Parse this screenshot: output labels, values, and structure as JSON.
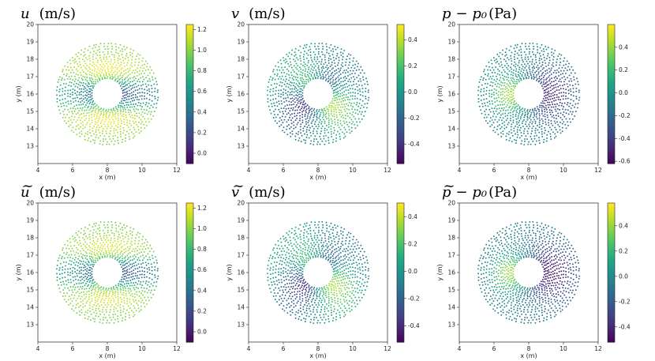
{
  "chart_data": [
    {
      "type": "scatter",
      "field": "u",
      "title_main": "u",
      "title_accent": "",
      "title_units": "(m/s)",
      "xlabel": "x (m)",
      "ylabel": "y (m)",
      "xlim": [
        4,
        12
      ],
      "ylim": [
        12,
        20
      ],
      "xticks": [
        "4",
        "6",
        "8",
        "10",
        "12"
      ],
      "yticks": [
        "13",
        "14",
        "15",
        "16",
        "17",
        "18",
        "19",
        "20"
      ],
      "colorbar": {
        "min": -0.1,
        "max": 1.25,
        "ticks": [
          "0.0",
          "0.2",
          "0.4",
          "0.6",
          "0.8",
          "1.0",
          "1.2"
        ],
        "tick_values": [
          0,
          0.2,
          0.4,
          0.6,
          0.8,
          1.0,
          1.2
        ]
      },
      "domain": {
        "center": [
          8,
          16
        ],
        "radius": 3,
        "obstacle_half_diagonal": 0.75
      }
    },
    {
      "type": "scatter",
      "field": "v",
      "title_main": "v",
      "title_accent": "",
      "title_units": "(m/s)",
      "xlabel": "x (m)",
      "ylabel": "y (m)",
      "xlim": [
        4,
        12
      ],
      "ylim": [
        12,
        20
      ],
      "xticks": [
        "4",
        "6",
        "8",
        "10",
        "12"
      ],
      "yticks": [
        "13",
        "14",
        "15",
        "16",
        "17",
        "18",
        "19",
        "20"
      ],
      "colorbar": {
        "min": -0.55,
        "max": 0.52,
        "ticks": [
          "-0.4",
          "-0.2",
          "0.0",
          "0.2",
          "0.4"
        ],
        "tick_values": [
          -0.4,
          -0.2,
          0.0,
          0.2,
          0.4
        ]
      },
      "domain": {
        "center": [
          8,
          16
        ],
        "radius": 3,
        "obstacle_half_diagonal": 0.75
      }
    },
    {
      "type": "scatter",
      "field": "p",
      "title_main": "p",
      "title_accent": "",
      "title_units": "(Pa)",
      "title_sub": "− p₀",
      "xlabel": "x (m)",
      "ylabel": "y (m)",
      "xlim": [
        4,
        12
      ],
      "ylim": [
        12,
        20
      ],
      "xticks": [
        "4",
        "6",
        "8",
        "10",
        "12"
      ],
      "yticks": [
        "13",
        "14",
        "15",
        "16",
        "17",
        "18",
        "19",
        "20"
      ],
      "colorbar": {
        "min": -0.62,
        "max": 0.6,
        "ticks": [
          "-0.6",
          "-0.4",
          "-0.2",
          "0.0",
          "0.2",
          "0.4"
        ],
        "tick_values": [
          -0.6,
          -0.4,
          -0.2,
          0.0,
          0.2,
          0.4
        ]
      },
      "domain": {
        "center": [
          8,
          16
        ],
        "radius": 3,
        "obstacle_half_diagonal": 0.75
      }
    },
    {
      "type": "scatter",
      "field": "u",
      "title_main": "u",
      "title_accent": "~",
      "title_units": "(m/s)",
      "xlabel": "x (m)",
      "ylabel": "y (m)",
      "xlim": [
        4,
        12
      ],
      "ylim": [
        12,
        20
      ],
      "xticks": [
        "4",
        "6",
        "8",
        "10",
        "12"
      ],
      "yticks": [
        "13",
        "14",
        "15",
        "16",
        "17",
        "18",
        "19",
        "20"
      ],
      "colorbar": {
        "min": -0.1,
        "max": 1.25,
        "ticks": [
          "0.0",
          "0.2",
          "0.4",
          "0.6",
          "0.8",
          "1.0",
          "1.2"
        ],
        "tick_values": [
          0,
          0.2,
          0.4,
          0.6,
          0.8,
          1.0,
          1.2
        ]
      },
      "domain": {
        "center": [
          8,
          16
        ],
        "radius": 3,
        "obstacle_half_diagonal": 0.75
      }
    },
    {
      "type": "scatter",
      "field": "v",
      "title_main": "v",
      "title_accent": "~",
      "title_units": "(m/s)",
      "xlabel": "x (m)",
      "ylabel": "y (m)",
      "xlim": [
        4,
        12
      ],
      "ylim": [
        12,
        20
      ],
      "xticks": [
        "4",
        "6",
        "8",
        "10",
        "12"
      ],
      "yticks": [
        "13",
        "14",
        "15",
        "16",
        "17",
        "18",
        "19",
        "20"
      ],
      "colorbar": {
        "min": -0.52,
        "max": 0.5,
        "ticks": [
          "-0.4",
          "-0.2",
          "0.0",
          "0.2",
          "0.4"
        ],
        "tick_values": [
          -0.4,
          -0.2,
          0.0,
          0.2,
          0.4
        ]
      },
      "domain": {
        "center": [
          8,
          16
        ],
        "radius": 3,
        "obstacle_half_diagonal": 0.75
      }
    },
    {
      "type": "scatter",
      "field": "p",
      "title_main": "p",
      "title_accent": "~",
      "title_units": "(Pa)",
      "title_sub": "− p₀",
      "xlabel": "x (m)",
      "ylabel": "y (m)",
      "xlim": [
        4,
        12
      ],
      "ylim": [
        12,
        20
      ],
      "xticks": [
        "4",
        "6",
        "8",
        "10",
        "12"
      ],
      "yticks": [
        "13",
        "14",
        "15",
        "16",
        "17",
        "18",
        "19",
        "20"
      ],
      "colorbar": {
        "min": -0.52,
        "max": 0.58,
        "ticks": [
          "-0.4",
          "-0.2",
          "0.0",
          "0.2",
          "0.4"
        ],
        "tick_values": [
          -0.4,
          -0.2,
          0.0,
          0.2,
          0.4
        ]
      },
      "domain": {
        "center": [
          8,
          16
        ],
        "radius": 3,
        "obstacle_half_diagonal": 0.75
      }
    }
  ],
  "colormap": "viridis"
}
